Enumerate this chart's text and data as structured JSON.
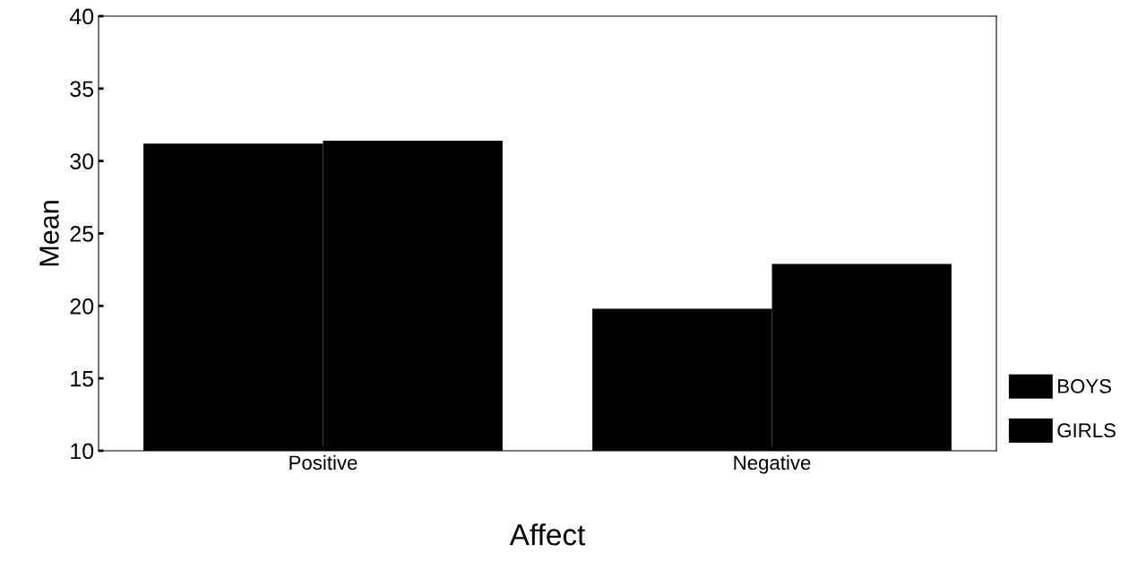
{
  "chart_data": {
    "type": "bar",
    "xlabel": "Affect",
    "ylabel": "Mean",
    "categories": [
      "Positive",
      "Negative"
    ],
    "series": [
      {
        "name": "BOYS",
        "color": "#000000",
        "values": [
          31.2,
          19.8
        ]
      },
      {
        "name": "GIRLS",
        "color": "#000000",
        "values": [
          31.4,
          22.9
        ]
      }
    ],
    "ylim": [
      10,
      40
    ],
    "yticks": [
      10,
      15,
      20,
      25,
      30,
      35,
      40
    ],
    "grid": false,
    "legend": "bottom right"
  }
}
